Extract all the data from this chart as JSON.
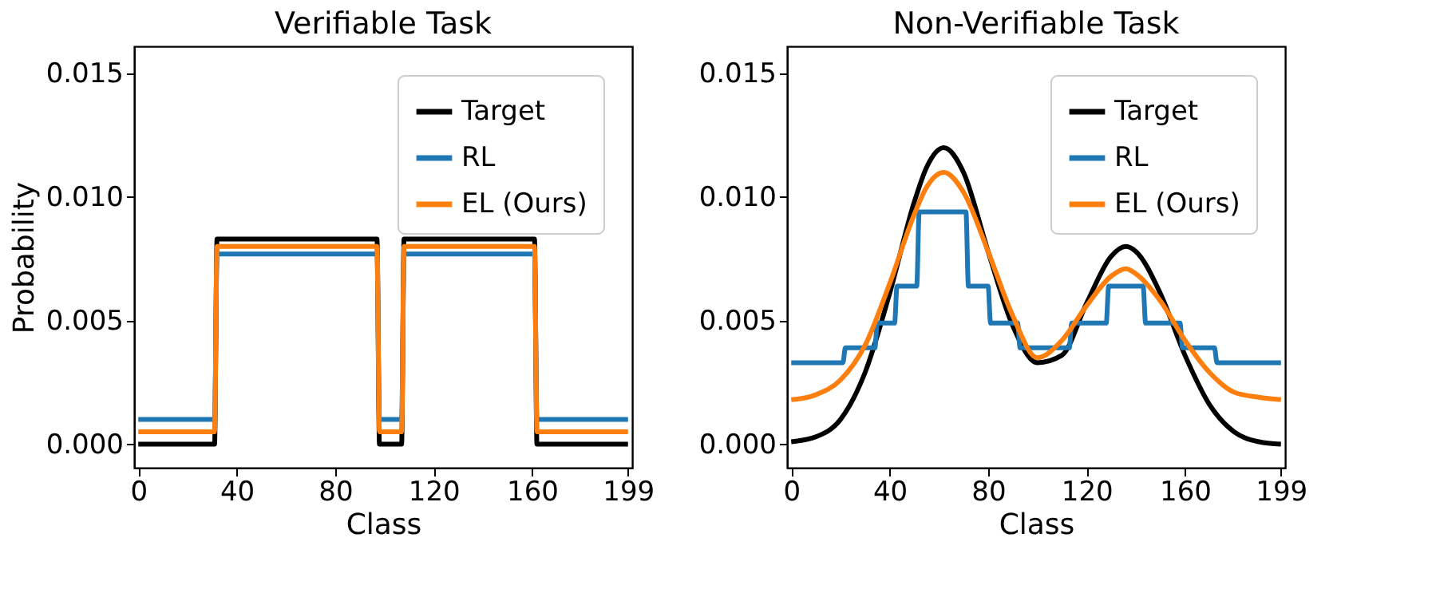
{
  "chart_data": [
    {
      "type": "line",
      "title": "Verifiable Task",
      "xlabel": "Class",
      "ylabel": "Probability",
      "xlim": [
        -1.7,
        200.7
      ],
      "ylim": [
        -0.00095,
        0.0161
      ],
      "xticks": [
        0,
        40,
        80,
        120,
        160,
        199
      ],
      "yticks": [
        {
          "value": 0,
          "label": "0.000"
        },
        {
          "value": 0.005,
          "label": "0.005"
        },
        {
          "value": 0.01,
          "label": "0.010"
        },
        {
          "value": 0.015,
          "label": "0.015"
        }
      ],
      "legend": "top right",
      "grid": false,
      "line_style": "solid",
      "series": [
        {
          "name": "Target",
          "color": "#000000",
          "x": [
            0,
            31,
            32,
            97,
            98,
            107,
            108,
            161,
            162,
            199
          ],
          "values": [
            0,
            0,
            0.0083,
            0.0083,
            0,
            0,
            0.0083,
            0.0083,
            0,
            0
          ]
        },
        {
          "name": "RL",
          "color": "#1f77b4",
          "x": [
            0,
            31,
            32,
            97,
            98,
            107,
            108,
            161,
            162,
            199
          ],
          "values": [
            0.001,
            0.001,
            0.0077,
            0.0077,
            0.001,
            0.001,
            0.0077,
            0.0077,
            0.001,
            0.001
          ]
        },
        {
          "name": "EL (Ours)",
          "color": "#ff7f0e",
          "x": [
            0,
            31,
            32,
            97,
            98,
            107,
            108,
            161,
            162,
            199
          ],
          "values": [
            0.0005,
            0.0005,
            0.008,
            0.008,
            0.0005,
            0.0005,
            0.008,
            0.008,
            0.0005,
            0.0005
          ]
        }
      ]
    },
    {
      "type": "line",
      "title": "Non-Verifiable Task",
      "xlabel": "Class",
      "xlim": [
        -1.7,
        200.7
      ],
      "ylim": [
        -0.00095,
        0.0161
      ],
      "xticks": [
        0,
        40,
        80,
        120,
        160,
        199
      ],
      "yticks": [
        {
          "value": 0,
          "label": "0.000"
        },
        {
          "value": 0.005,
          "label": "0.005"
        },
        {
          "value": 0.01,
          "label": "0.010"
        },
        {
          "value": 0.015,
          "label": "0.015"
        }
      ],
      "legend": "top right",
      "grid": false,
      "line_style": "solid",
      "series": [
        {
          "name": "Target",
          "color": "#000000",
          "x": [
            0,
            10,
            20,
            30,
            40,
            50,
            55,
            62,
            70,
            80,
            90,
            100,
            110,
            120,
            130,
            136,
            140,
            150,
            160,
            170,
            180,
            190,
            199
          ],
          "values": [
            0.0001,
            0.0003,
            0.001,
            0.0029,
            0.0061,
            0.0098,
            0.0112,
            0.012,
            0.011,
            0.0078,
            0.0048,
            0.0033,
            0.0036,
            0.0057,
            0.0076,
            0.008,
            0.0078,
            0.0061,
            0.0036,
            0.0016,
            0.0005,
            0.0001,
            0.0
          ]
        },
        {
          "name": "RL",
          "color": "#1f77b4",
          "x": [
            0,
            21,
            22,
            34,
            35,
            42,
            43,
            51,
            52,
            71,
            72,
            80,
            81,
            92,
            93,
            113,
            114,
            128,
            129,
            143,
            144,
            158,
            159,
            172,
            173,
            199
          ],
          "values": [
            0.0033,
            0.0033,
            0.0039,
            0.0039,
            0.0049,
            0.0049,
            0.0064,
            0.0064,
            0.0094,
            0.0094,
            0.0064,
            0.0064,
            0.0049,
            0.0049,
            0.0039,
            0.0039,
            0.0049,
            0.0049,
            0.0064,
            0.0064,
            0.0049,
            0.0049,
            0.0039,
            0.0039,
            0.0033,
            0.0033
          ]
        },
        {
          "name": "EL (Ours)",
          "color": "#ff7f0e",
          "x": [
            0,
            10,
            20,
            30,
            40,
            50,
            55,
            62,
            70,
            80,
            90,
            100,
            110,
            120,
            130,
            136,
            140,
            150,
            160,
            170,
            180,
            190,
            199
          ],
          "values": [
            0.0018,
            0.002,
            0.0026,
            0.004,
            0.0065,
            0.0093,
            0.0104,
            0.011,
            0.0102,
            0.0078,
            0.0052,
            0.0035,
            0.0042,
            0.0056,
            0.0068,
            0.0071,
            0.0069,
            0.0058,
            0.0042,
            0.0029,
            0.0021,
            0.0019,
            0.0018
          ]
        }
      ]
    }
  ]
}
